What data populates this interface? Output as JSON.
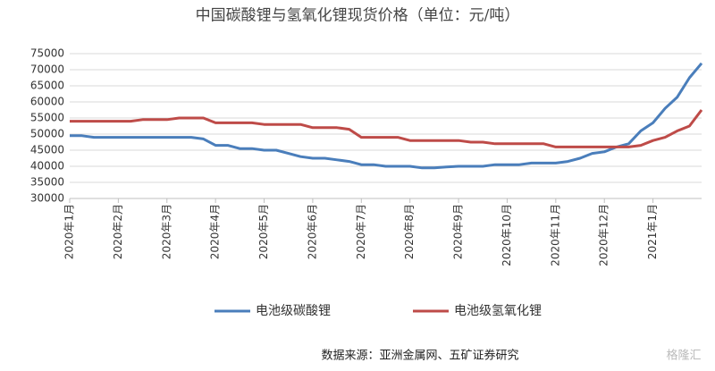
{
  "chart_data": {
    "type": "line",
    "title": "中国碳酸锂与氢氧化锂现货价格（单位：元/吨）",
    "source": "数据来源：亚洲金属网、五矿证券研究",
    "watermark": "格隆汇",
    "categories": [
      "2020年1月",
      null,
      null,
      null,
      "2020年2月",
      null,
      null,
      null,
      "2020年3月",
      null,
      null,
      null,
      "2020年4月",
      null,
      null,
      null,
      "2020年5月",
      null,
      null,
      null,
      "2020年6月",
      null,
      null,
      null,
      "2020年7月",
      null,
      null,
      null,
      "2020年8月",
      null,
      null,
      null,
      "2020年9月",
      null,
      null,
      null,
      "2020年10月",
      null,
      null,
      null,
      "2020年11月",
      null,
      null,
      null,
      "2020年12月",
      null,
      null,
      null,
      "2021年1月",
      null,
      null,
      null,
      null
    ],
    "series": [
      {
        "name": "电池级碳酸锂",
        "color": "#4a7ebb",
        "values": [
          49500,
          49500,
          49000,
          49000,
          49000,
          49000,
          49000,
          49000,
          49000,
          49000,
          49000,
          48500,
          46500,
          46500,
          45500,
          45500,
          45000,
          45000,
          44000,
          43000,
          42500,
          42500,
          42000,
          41500,
          40500,
          40500,
          40000,
          40000,
          40000,
          39500,
          39500,
          39800,
          40000,
          40000,
          40000,
          40500,
          40500,
          40500,
          41000,
          41000,
          41000,
          41500,
          42500,
          44000,
          44500,
          46000,
          47000,
          51000,
          53500,
          58000,
          61500,
          67500,
          72000
        ]
      },
      {
        "name": "电池级氢氧化锂",
        "color": "#be4b48",
        "values": [
          54000,
          54000,
          54000,
          54000,
          54000,
          54000,
          54500,
          54500,
          54500,
          55000,
          55000,
          55000,
          53500,
          53500,
          53500,
          53500,
          53000,
          53000,
          53000,
          53000,
          52000,
          52000,
          52000,
          51500,
          49000,
          49000,
          49000,
          49000,
          48000,
          48000,
          48000,
          48000,
          48000,
          47500,
          47500,
          47000,
          47000,
          47000,
          47000,
          47000,
          46000,
          46000,
          46000,
          46000,
          46000,
          46000,
          46000,
          46500,
          48000,
          49000,
          51000,
          52500,
          57500
        ]
      }
    ],
    "ylim": [
      30000,
      75000
    ],
    "yticks": [
      30000,
      35000,
      40000,
      45000,
      50000,
      55000,
      60000,
      65000,
      70000,
      75000
    ],
    "grid": true
  }
}
